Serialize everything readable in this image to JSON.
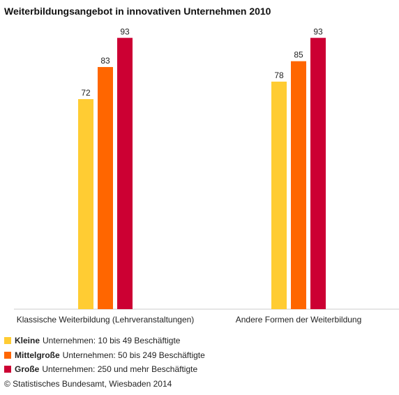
{
  "chart_data": {
    "type": "bar",
    "title": "Weiterbildungsangebot in innovativen Unternehmen 2010",
    "categories": [
      "Klassische Weiterbildung (Lehrveranstaltungen)",
      "Andere Formen der Weiterbildung"
    ],
    "series": [
      {
        "name": "Kleine",
        "values": [
          72,
          78
        ],
        "color": "#ffcc33"
      },
      {
        "name": "Mittelgroße",
        "values": [
          83,
          85
        ],
        "color": "#ff6600"
      },
      {
        "name": "Große",
        "values": [
          93,
          93
        ],
        "color": "#cc0033"
      }
    ],
    "ylim": [
      0,
      100
    ],
    "grid": false,
    "legend_position": "bottom"
  },
  "legend": [
    {
      "bold": "Kleine",
      "text": "Unternehmen: 10 bis 49 Beschäftigte",
      "color": "#ffcc33"
    },
    {
      "bold": "Mittelgroße",
      "text": "Unternehmen: 50 bis 249 Beschäftigte",
      "color": "#ff6600"
    },
    {
      "bold": "Große",
      "text": "Unternehmen: 250 und mehr Beschäftigte",
      "color": "#cc0033"
    }
  ],
  "source": "© Statistisches Bundesamt, Wiesbaden 2014"
}
